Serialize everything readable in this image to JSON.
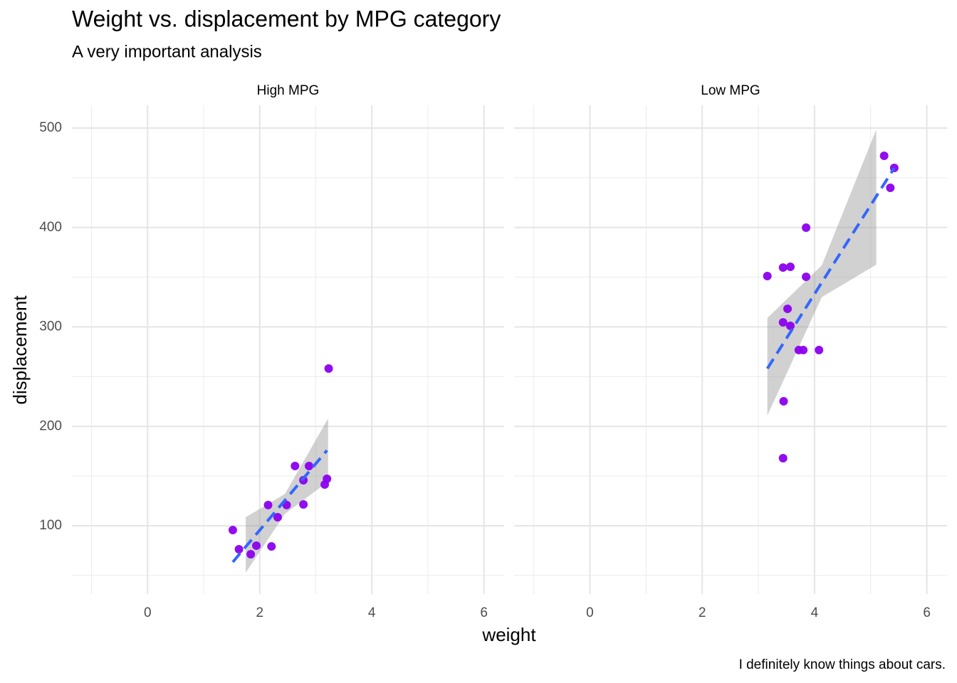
{
  "title": "Weight vs. displacement by MPG category",
  "subtitle": "A very important analysis",
  "x_label": "weight",
  "y_label": "displacement",
  "caption": "I definitely know things about cars.",
  "chart_data": [
    {
      "type": "scatter",
      "facet": "High MPG",
      "xlim": [
        -1.35,
        6.36
      ],
      "ylim": [
        31.3,
        522.9
      ],
      "xticks": [
        0,
        2,
        4,
        6
      ],
      "yticks": [
        100,
        200,
        300,
        400,
        500
      ],
      "grid": true,
      "minor_grid": true,
      "show_ytick_labels": true,
      "points": {
        "color": "#8b00ee",
        "x": [
          1.52,
          1.63,
          1.84,
          1.94,
          2.21,
          2.15,
          2.32,
          2.48,
          2.63,
          2.78,
          2.78,
          2.88,
          3.16,
          3.2,
          3.23
        ],
        "y": [
          95.7,
          76.4,
          71.4,
          80.0,
          79.2,
          120.8,
          108.6,
          120.8,
          160.1,
          145.8,
          121.5,
          160.1,
          141.5,
          147.2,
          258.1
        ]
      },
      "ribbon": {
        "color": "#999999",
        "x": [
          1.75,
          2.45,
          3.22
        ],
        "lower": [
          52.8,
          112,
          144.4
        ],
        "upper": [
          108.6,
          132,
          208
        ]
      },
      "fit": {
        "color": "#3366ff",
        "dashed": true,
        "x": [
          1.52,
          3.2
        ],
        "y": [
          63.5,
          175.8
        ]
      }
    },
    {
      "type": "scatter",
      "facet": "Low MPG",
      "xlim": [
        -1.35,
        6.36
      ],
      "ylim": [
        31.3,
        522.9
      ],
      "xticks": [
        0,
        2,
        4,
        6
      ],
      "yticks": [
        100,
        200,
        300,
        400,
        500
      ],
      "grid": true,
      "minor_grid": true,
      "show_ytick_labels": false,
      "points": {
        "color": "#8b00ee",
        "x": [
          3.16,
          3.44,
          3.57,
          3.85,
          3.85,
          3.52,
          3.44,
          3.57,
          3.72,
          3.8,
          4.08,
          3.45,
          3.44,
          5.24,
          5.42,
          5.35
        ],
        "y": [
          351.2,
          359.7,
          360.5,
          399.8,
          350.4,
          318.2,
          304.6,
          301.1,
          276.7,
          276.7,
          276.7,
          225.2,
          168.0,
          472.1,
          459.9,
          439.9
        ]
      },
      "ribbon": {
        "color": "#999999",
        "x": [
          3.16,
          4.13,
          5.1
        ],
        "lower": [
          210.9,
          330,
          362.6
        ],
        "upper": [
          308.9,
          362,
          498.6
        ]
      },
      "fit": {
        "color": "#3366ff",
        "dashed": true,
        "x": [
          3.16,
          5.42
        ],
        "y": [
          258.1,
          459.9
        ]
      }
    }
  ]
}
